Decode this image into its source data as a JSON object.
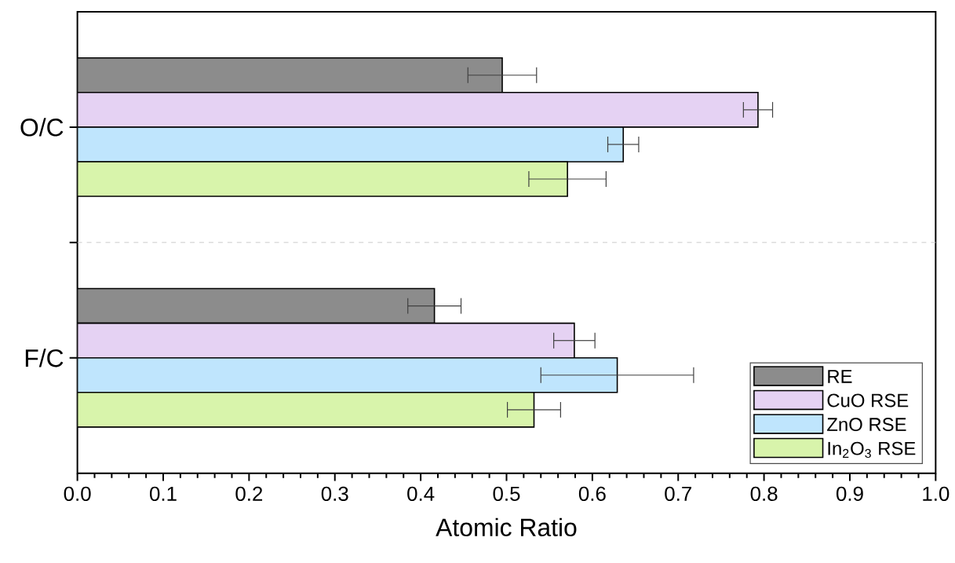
{
  "chart_data": {
    "type": "bar",
    "orientation": "horizontal",
    "xlabel": "Atomic Ratio",
    "categories": [
      "O/C",
      "F/C"
    ],
    "series": [
      {
        "name": "RE",
        "color": "#8c8c8c",
        "values": [
          0.495,
          0.416
        ],
        "errors": [
          0.04,
          0.031
        ]
      },
      {
        "name": "CuO RSE",
        "color": "#e5d2f3",
        "values": [
          0.793,
          0.579
        ],
        "errors": [
          0.017,
          0.024
        ]
      },
      {
        "name": "ZnO RSE",
        "color": "#bfe5fd",
        "values": [
          0.636,
          0.629
        ],
        "errors": [
          0.018,
          0.089
        ]
      },
      {
        "name": "In$_{2}$O$_{3}$ RSE",
        "color": "#d8f4ab",
        "values": [
          0.571,
          0.532
        ],
        "errors": [
          0.045,
          0.031
        ]
      }
    ],
    "xlim": [
      0,
      1
    ],
    "xticks": [
      {
        "value": 0,
        "label": "0.0"
      },
      0.1,
      0.2,
      0.3,
      0.4,
      0.5,
      0.6,
      0.7,
      0.8,
      0.9,
      {
        "value": 1,
        "label": "1.0"
      }
    ],
    "legend": "bottom right"
  }
}
